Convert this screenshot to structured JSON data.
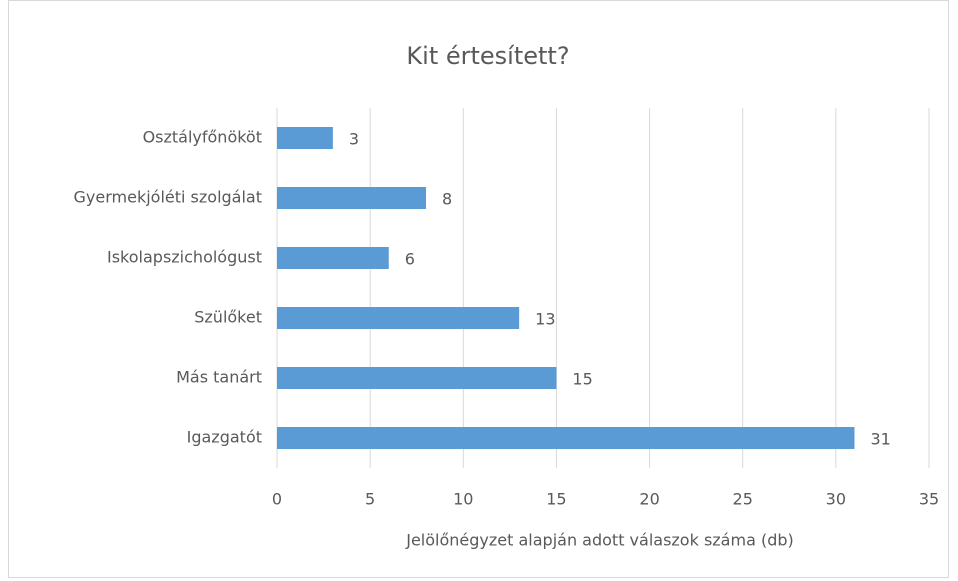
{
  "chart_data": {
    "type": "barh",
    "title": "Kit értesített?",
    "categories": [
      "Osztályfőnököt",
      "Gyermekjóléti szolgálat",
      "Iskolapszichológust",
      "Szülőket",
      "Más tanárt",
      "Igazgatót"
    ],
    "values": [
      3,
      8,
      6,
      13,
      15,
      31
    ],
    "color": "#5b9bd5",
    "xlabel": "Jelölőnégyzet alapján adott válaszok száma (db)",
    "xlim": [
      0,
      35
    ],
    "xticks": [
      0,
      5,
      10,
      15,
      20,
      25,
      30,
      35
    ],
    "grid": true
  }
}
